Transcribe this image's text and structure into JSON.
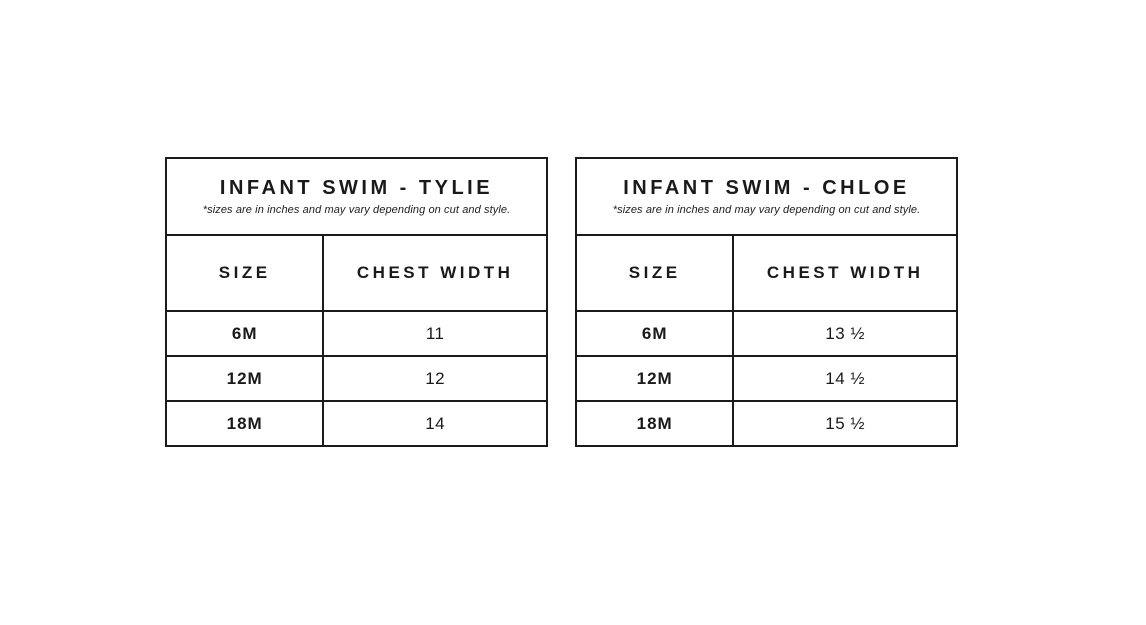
{
  "chart_data": [
    {
      "type": "table",
      "title": "INFANT SWIM - TYLIE",
      "subtitle": "*sizes are in inches and may vary depending on cut and style.",
      "columns": [
        "SIZE",
        "CHEST WIDTH"
      ],
      "rows": [
        [
          "6M",
          "11"
        ],
        [
          "12M",
          "12"
        ],
        [
          "18M",
          "14"
        ]
      ],
      "chest_width_numeric": [
        11,
        12,
        14
      ]
    },
    {
      "type": "table",
      "title": "INFANT SWIM - CHLOE",
      "subtitle": "*sizes are in inches and may vary depending on cut and style.",
      "columns": [
        "SIZE",
        "CHEST WIDTH"
      ],
      "rows": [
        [
          "6M",
          "13 ½"
        ],
        [
          "12M",
          "14 ½"
        ],
        [
          "18M",
          "15 ½"
        ]
      ],
      "chest_width_numeric": [
        13.5,
        14.5,
        15.5
      ]
    }
  ],
  "colors": {
    "background": "#ffffff",
    "border": "#1b1b1b",
    "text": "#1a1a1a"
  }
}
